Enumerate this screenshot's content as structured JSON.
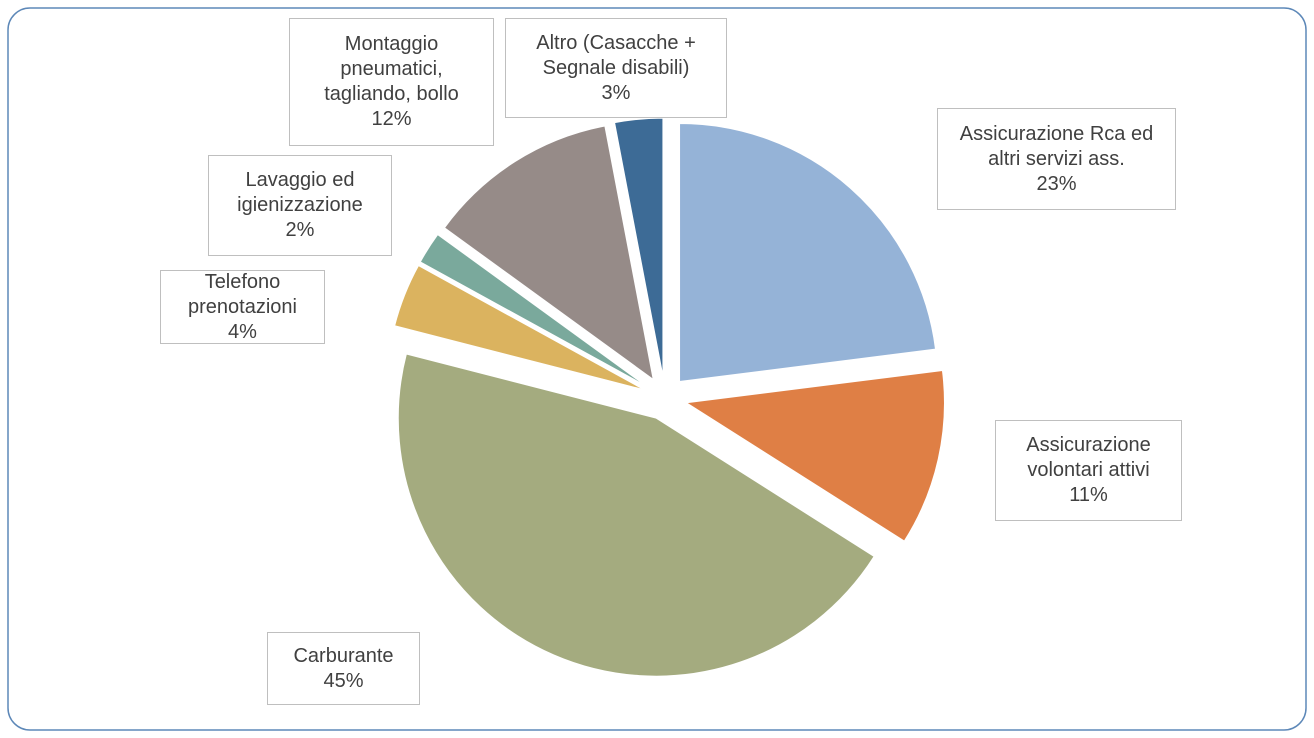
{
  "chart_data": {
    "type": "pie",
    "categories": [
      "Assicurazione Rca ed altri servizi ass.",
      "Assicurazione volontari attivi",
      "Carburante",
      "Telefono prenotazioni",
      "Lavaggio ed igienizzazione",
      "Montaggio pneumatici, tagliando, bollo",
      "Altro (Casacche + Segnale disabili)"
    ],
    "values": [
      23,
      11,
      45,
      4,
      2,
      12,
      3
    ],
    "value_labels": [
      "23%",
      "11%",
      "45%",
      "4%",
      "2%",
      "12%",
      "3%"
    ],
    "colors": [
      "#95b3d7",
      "#df7f45",
      "#a4ab7f",
      "#dbb35f",
      "#7aa99c",
      "#968b88",
      "#3d6b96"
    ]
  }
}
